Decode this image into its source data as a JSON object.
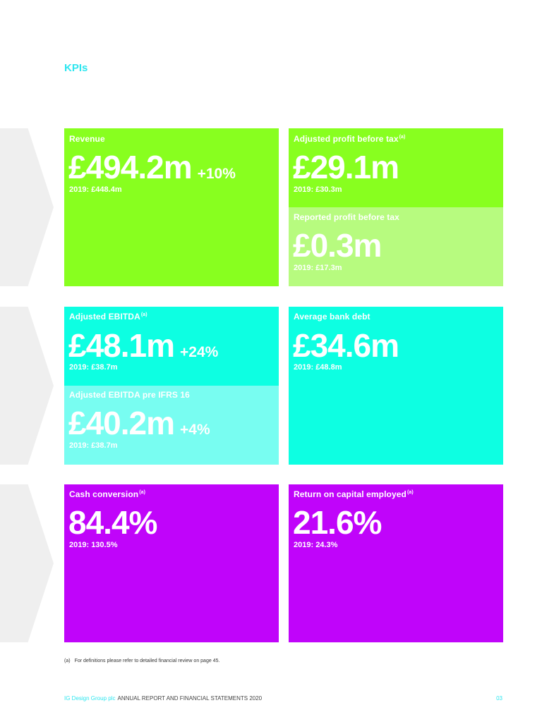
{
  "page_title": "KPIs",
  "colors": {
    "green": "#88ff1f",
    "light_green": "#b7fb7f",
    "cyan": "#0dffe2",
    "light_cyan": "#78fdf1",
    "purple": "#c004fa",
    "accent_text": "#2ee6ef"
  },
  "kpis": {
    "revenue": {
      "label": "Revenue",
      "value": "£494.2m",
      "change": "+10%",
      "comparison": "2019: £448.4m"
    },
    "adj_pbt": {
      "label": "Adjusted profit before tax",
      "footnote_ref": "(a)",
      "value": "£29.1m",
      "comparison": "2019: £30.3m"
    },
    "reported_pbt": {
      "label": "Reported profit before tax",
      "value": "£0.3m",
      "comparison": "2019: £17.3m"
    },
    "adj_ebitda": {
      "label": "Adjusted EBITDA",
      "footnote_ref": "(a)",
      "value": "£48.1m",
      "change": "+24%",
      "comparison": "2019: £38.7m"
    },
    "adj_ebitda_pre_ifrs16": {
      "label": "Adjusted EBITDA pre IFRS 16",
      "value": "£40.2m",
      "change": "+4%",
      "comparison": "2019: £38.7m"
    },
    "avg_bank_debt": {
      "label": "Average bank debt",
      "value": "£34.6m",
      "comparison": "2019: £48.8m"
    },
    "cash_conversion": {
      "label": "Cash conversion",
      "footnote_ref": "(a)",
      "value": "84.4%",
      "comparison": "2019: 130.5%"
    },
    "roce": {
      "label": "Return on capital employed",
      "footnote_ref": "(a)",
      "value": "21.6%",
      "comparison": "2019: 24.3%"
    }
  },
  "footnote": {
    "marker": "(a)",
    "text": "For definitions please refer to detailed financial review on page 45."
  },
  "footer": {
    "company": "IG Design Group plc",
    "publication": "ANNUAL REPORT AND FINANCIAL STATEMENTS 2020",
    "page_number": "03"
  }
}
